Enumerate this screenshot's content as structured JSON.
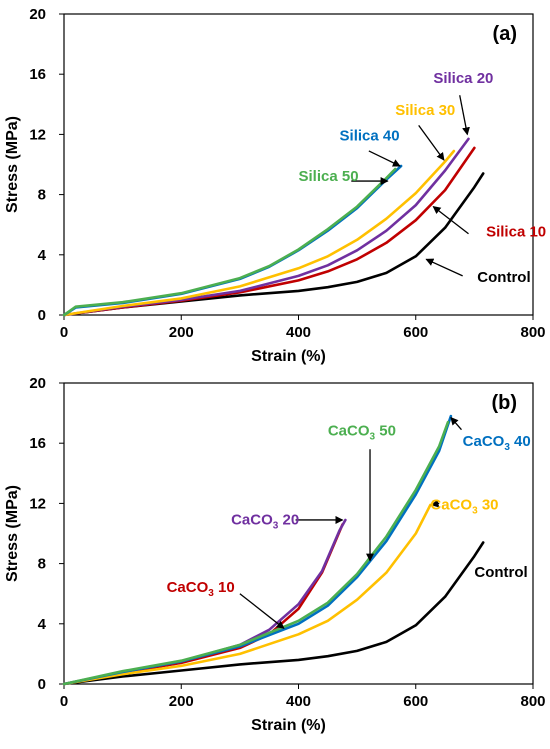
{
  "chart_data": [
    {
      "type": "line",
      "panel_label": "(a)",
      "xlabel": "Strain (%)",
      "ylabel": "Stress (MPa)",
      "xlim": [
        0,
        800
      ],
      "ylim": [
        0,
        20
      ],
      "xticks": [
        0,
        200,
        400,
        600,
        800
      ],
      "yticks": [
        0,
        4,
        8,
        12,
        16,
        20
      ],
      "grid": false,
      "series": [
        {
          "name": "Control",
          "color": "#000000",
          "x": [
            0,
            100,
            200,
            300,
            400,
            450,
            500,
            550,
            600,
            650,
            700,
            715
          ],
          "y": [
            0,
            0.5,
            0.9,
            1.3,
            1.6,
            1.85,
            2.2,
            2.8,
            3.9,
            5.8,
            8.5,
            9.4
          ]
        },
        {
          "name": "Silica 10",
          "color": "#c00000",
          "x": [
            0,
            100,
            200,
            300,
            400,
            450,
            500,
            550,
            600,
            650,
            700
          ],
          "y": [
            0,
            0.5,
            0.95,
            1.5,
            2.3,
            2.9,
            3.7,
            4.8,
            6.3,
            8.3,
            11.1
          ]
        },
        {
          "name": "Silica 20",
          "color": "#7030a0",
          "x": [
            0,
            100,
            200,
            300,
            400,
            450,
            500,
            550,
            600,
            650,
            690
          ],
          "y": [
            0,
            0.55,
            1.0,
            1.6,
            2.6,
            3.3,
            4.3,
            5.6,
            7.3,
            9.6,
            11.7
          ]
        },
        {
          "name": "Silica 30",
          "color": "#ffc000",
          "x": [
            0,
            100,
            200,
            300,
            400,
            450,
            500,
            550,
            600,
            650,
            665
          ],
          "y": [
            0,
            0.6,
            1.1,
            1.9,
            3.1,
            3.9,
            5.0,
            6.4,
            8.1,
            10.2,
            10.9
          ]
        },
        {
          "name": "Silica 40",
          "color": "#0070c0",
          "x": [
            0,
            20,
            100,
            200,
            300,
            350,
            400,
            450,
            500,
            550,
            575
          ],
          "y": [
            0,
            0.5,
            0.8,
            1.4,
            2.4,
            3.2,
            4.3,
            5.6,
            7.1,
            9.0,
            9.9
          ]
        },
        {
          "name": "Silica 50",
          "color": "#4caf50",
          "x": [
            0,
            20,
            100,
            200,
            300,
            350,
            400,
            450,
            500,
            550,
            565
          ],
          "y": [
            0,
            0.55,
            0.85,
            1.45,
            2.45,
            3.25,
            4.35,
            5.7,
            7.2,
            9.1,
            9.7
          ]
        }
      ],
      "annotations": [
        {
          "text": "Silica 20",
          "color": "#7030a0",
          "at": [
            630,
            15.4
          ],
          "arrow_from": [
            675,
            14.6
          ],
          "arrow_to": [
            688,
            12.0
          ]
        },
        {
          "text": "Silica 30",
          "color": "#ffc000",
          "at": [
            565,
            13.3
          ],
          "arrow_from": [
            605,
            12.6
          ],
          "arrow_to": [
            648,
            10.3
          ]
        },
        {
          "text": "Silica 40",
          "color": "#0070c0",
          "at": [
            470,
            11.6
          ],
          "arrow_from": [
            520,
            10.9
          ],
          "arrow_to": [
            573,
            9.9
          ]
        },
        {
          "text": "Silica 50",
          "color": "#4caf50",
          "at": [
            400,
            8.9
          ],
          "arrow_from": [
            490,
            8.9
          ],
          "arrow_to": [
            552,
            8.9
          ]
        },
        {
          "text": "Silica 10",
          "color": "#c00000",
          "at": [
            720,
            5.2
          ],
          "arrow_from": [
            690,
            5.4
          ],
          "arrow_to": [
            630,
            7.2
          ]
        },
        {
          "text": "Control",
          "color": "#000000",
          "at": [
            705,
            2.2
          ],
          "arrow_from": [
            680,
            2.6
          ],
          "arrow_to": [
            618,
            3.7
          ]
        }
      ]
    },
    {
      "type": "line",
      "panel_label": "(b)",
      "xlabel": "Strain (%)",
      "ylabel": "Stress (MPa)",
      "xlim": [
        0,
        800
      ],
      "ylim": [
        0,
        20
      ],
      "xticks": [
        0,
        200,
        400,
        600,
        800
      ],
      "yticks": [
        0,
        4,
        8,
        12,
        16,
        20
      ],
      "grid": false,
      "series": [
        {
          "name": "Control",
          "color": "#000000",
          "x": [
            0,
            100,
            200,
            300,
            400,
            450,
            500,
            550,
            600,
            650,
            700,
            715
          ],
          "y": [
            0,
            0.5,
            0.9,
            1.3,
            1.6,
            1.85,
            2.2,
            2.8,
            3.9,
            5.8,
            8.5,
            9.4
          ]
        },
        {
          "name": "CaCO3 10",
          "color": "#c00000",
          "x": [
            0,
            100,
            200,
            300,
            350,
            400,
            440,
            475
          ],
          "y": [
            0,
            0.75,
            1.4,
            2.4,
            3.3,
            5.0,
            7.4,
            10.6
          ]
        },
        {
          "name": "CaCO3 20",
          "color": "#7030a0",
          "x": [
            0,
            100,
            200,
            300,
            350,
            400,
            440,
            470,
            480
          ],
          "y": [
            0,
            0.8,
            1.5,
            2.6,
            3.6,
            5.3,
            7.5,
            10.2,
            10.9
          ]
        },
        {
          "name": "CaCO3 30",
          "color": "#ffc000",
          "x": [
            0,
            100,
            200,
            300,
            400,
            450,
            500,
            550,
            600,
            625
          ],
          "y": [
            0,
            0.65,
            1.2,
            2.0,
            3.3,
            4.2,
            5.6,
            7.4,
            10.0,
            11.9
          ]
        },
        {
          "name": "CaCO3 40",
          "color": "#0070c0",
          "x": [
            0,
            100,
            200,
            300,
            400,
            450,
            500,
            550,
            600,
            640,
            660
          ],
          "y": [
            0,
            0.8,
            1.5,
            2.5,
            4.0,
            5.2,
            7.1,
            9.5,
            12.6,
            15.5,
            17.8
          ]
        },
        {
          "name": "CaCO3 50",
          "color": "#4caf50",
          "x": [
            0,
            100,
            200,
            300,
            400,
            450,
            500,
            550,
            600,
            640,
            655
          ],
          "y": [
            0,
            0.85,
            1.55,
            2.6,
            4.2,
            5.4,
            7.3,
            9.8,
            12.9,
            15.8,
            17.4
          ]
        }
      ],
      "annotations": [
        {
          "text": "CaCO",
          "sub": "3",
          "suffix": " 40",
          "color": "#0070c0",
          "at": [
            680,
            15.8
          ],
          "arrow_from": [
            678,
            16.9
          ],
          "arrow_to": [
            660,
            17.7
          ]
        },
        {
          "text": "CaCO",
          "sub": "3",
          "suffix": " 50",
          "color": "#4caf50",
          "at": [
            450,
            16.5
          ],
          "arrow_from": [
            522,
            15.6
          ],
          "arrow_to": [
            522,
            8.2
          ]
        },
        {
          "text": "CaCO",
          "sub": "3",
          "suffix": " 30",
          "color": "#ffc000",
          "at": [
            625,
            11.6
          ],
          "arrow_from": [
            640,
            12.0
          ],
          "arrow_to": [
            627,
            11.9
          ]
        },
        {
          "text": "CaCO",
          "sub": "3",
          "suffix": " 20",
          "color": "#7030a0",
          "at": [
            285,
            10.6
          ],
          "arrow_from": [
            395,
            10.9
          ],
          "arrow_to": [
            475,
            10.9
          ]
        },
        {
          "text": "CaCO",
          "sub": "3",
          "suffix": " 10",
          "color": "#c00000",
          "at": [
            175,
            6.1
          ],
          "arrow_from": [
            300,
            6.0
          ],
          "arrow_to": [
            375,
            3.7
          ]
        },
        {
          "text": "Control",
          "color": "#000000",
          "at": [
            700,
            7.1
          ],
          "arrow_from": null,
          "arrow_to": null
        }
      ]
    }
  ]
}
